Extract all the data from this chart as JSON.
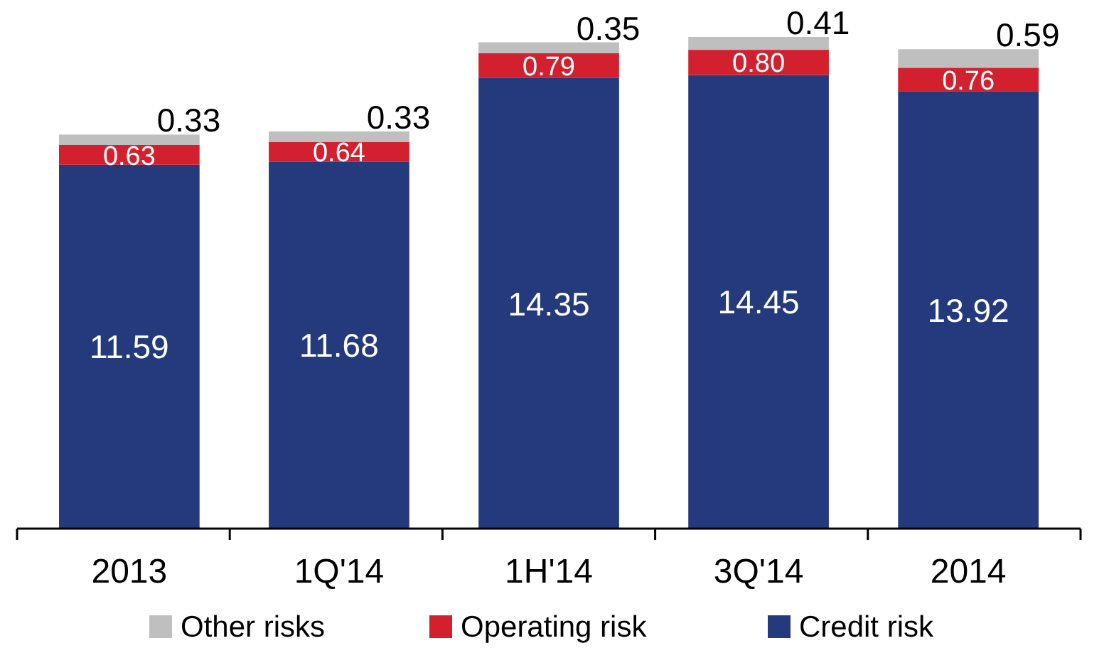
{
  "chart_data": {
    "type": "bar",
    "stacked": true,
    "legend": "bottom",
    "categories": [
      "2013",
      "1Q'14",
      "1H'14",
      "3Q'14",
      "2014"
    ],
    "series": [
      {
        "name": "Credit risk",
        "color": "#253a7d",
        "values": [
          11.59,
          11.68,
          14.35,
          14.45,
          13.92
        ],
        "value_labels": [
          "11.59",
          "11.68",
          "14.35",
          "14.45",
          "13.92"
        ]
      },
      {
        "name": "Operating risk",
        "color": "#d2202f",
        "values": [
          0.63,
          0.64,
          0.79,
          0.8,
          0.76
        ],
        "value_labels": [
          "0.63",
          "0.64",
          "0.79",
          "0.80",
          "0.76"
        ]
      },
      {
        "name": "Other risks",
        "color": "#bfbfbf",
        "values": [
          0.33,
          0.33,
          0.35,
          0.41,
          0.59
        ],
        "value_labels": [
          "0.33",
          "0.33",
          "0.35",
          "0.41",
          "0.59"
        ]
      }
    ]
  }
}
